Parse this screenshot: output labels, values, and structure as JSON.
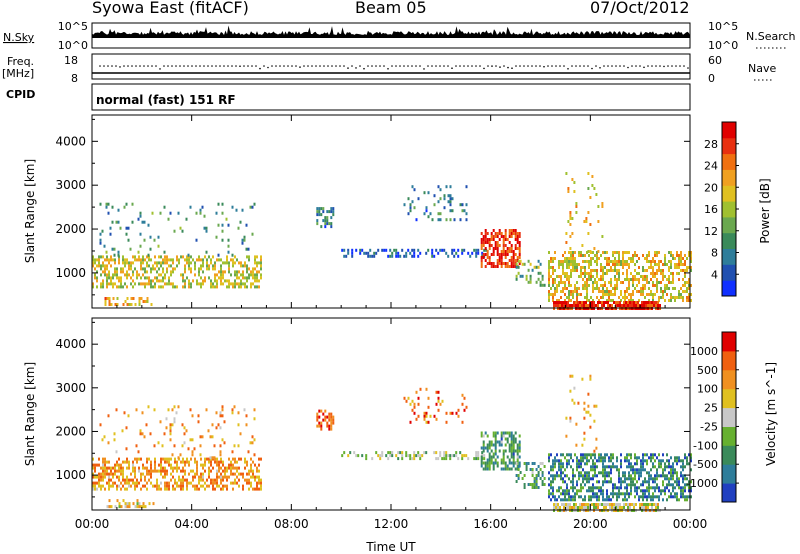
{
  "header": {
    "station": "Syowa East (fitACF)",
    "beam": "Beam 05",
    "date": "07/Oct/2012"
  },
  "top_panels": {
    "nsky_label": "N.Sky",
    "nsky_ticks": [
      "10^5",
      "10^0"
    ],
    "nsearch_label": "N.Search",
    "nsearch_ticks": [
      "10^5",
      "10^0"
    ],
    "freq_label": "Freq.",
    "freq_unit": "[MHz]",
    "freq_ticks": [
      "18",
      "8"
    ],
    "nave_label": "Nave",
    "nave_ticks": [
      "60",
      "0"
    ],
    "cpid_label": "CPID",
    "cpid_text": "normal (fast) 151 RF"
  },
  "chart_data": [
    {
      "type": "heatmap",
      "name": "power",
      "ylabel": "Slant Range [km]",
      "xlabel": "Time UT",
      "xlim": [
        0,
        24
      ],
      "ylim": [
        200,
        4600
      ],
      "x_ticks": [
        "00:00",
        "04:00",
        "08:00",
        "12:00",
        "16:00",
        "20:00",
        "00:00"
      ],
      "y_ticks": [
        "1000",
        "2000",
        "3000",
        "4000"
      ],
      "colorbar": {
        "label": "Power [dB]",
        "ticks": [
          "4",
          "8",
          "12",
          "16",
          "20",
          "24",
          "28"
        ],
        "colors": [
          "#1030ff",
          "#2050b0",
          "#2e7d9a",
          "#3a8a5a",
          "#6aa84f",
          "#a0c030",
          "#e0c020",
          "#f0a020",
          "#f07010",
          "#e83010",
          "#e00000"
        ]
      },
      "regions": [
        {
          "t": [
            0.0,
            6.8
          ],
          "r": [
            700,
            1400
          ],
          "level": 0.55,
          "density": 0.45
        },
        {
          "t": [
            0.3,
            6.5
          ],
          "r": [
            1400,
            2600
          ],
          "level": 0.3,
          "density": 0.08
        },
        {
          "t": [
            0.5,
            2.5
          ],
          "r": [
            250,
            450
          ],
          "level": 0.65,
          "density": 0.35
        },
        {
          "t": [
            9.0,
            9.7
          ],
          "r": [
            2050,
            2500
          ],
          "level": 0.25,
          "density": 0.55
        },
        {
          "t": [
            10.0,
            15.8
          ],
          "r": [
            1400,
            1550
          ],
          "level": 0.15,
          "density": 0.4
        },
        {
          "t": [
            12.5,
            15.0
          ],
          "r": [
            2200,
            3000
          ],
          "level": 0.25,
          "density": 0.12
        },
        {
          "t": [
            15.6,
            17.2
          ],
          "r": [
            1150,
            2000
          ],
          "level": 0.9,
          "density": 0.65
        },
        {
          "t": [
            17.0,
            18.2
          ],
          "r": [
            700,
            1300
          ],
          "level": 0.4,
          "density": 0.3
        },
        {
          "t": [
            18.3,
            24.0
          ],
          "r": [
            400,
            1500
          ],
          "level": 0.6,
          "density": 0.5
        },
        {
          "t": [
            18.5,
            22.8
          ],
          "r": [
            200,
            360
          ],
          "level": 0.92,
          "density": 0.9
        },
        {
          "t": [
            19.0,
            20.5
          ],
          "r": [
            1500,
            3300
          ],
          "level": 0.6,
          "density": 0.06
        }
      ]
    },
    {
      "type": "heatmap",
      "name": "velocity",
      "ylabel": "Slant Range [km]",
      "xlabel": "Time UT",
      "xlim": [
        0,
        24
      ],
      "ylim": [
        200,
        4600
      ],
      "x_ticks": [
        "00:00",
        "04:00",
        "08:00",
        "12:00",
        "16:00",
        "20:00",
        "00:00"
      ],
      "y_ticks": [
        "1000",
        "2000",
        "3000",
        "4000"
      ],
      "colorbar": {
        "label": "Velocity [m s^-1]",
        "ticks": [
          "1000",
          "500",
          "100",
          "25",
          "-25",
          "-100",
          "-500",
          "-1000"
        ],
        "colors": [
          "#2040c0",
          "#2e7d9a",
          "#3a8a5a",
          "#66b030",
          "#c8c8c8",
          "#e0c020",
          "#f09020",
          "#f06010",
          "#e00000"
        ]
      },
      "regions": [
        {
          "t": [
            0.0,
            6.8
          ],
          "r": [
            700,
            1400
          ],
          "level": 0.72,
          "density": 0.5
        },
        {
          "t": [
            0.3,
            6.5
          ],
          "r": [
            1400,
            2600
          ],
          "level": 0.7,
          "density": 0.08
        },
        {
          "t": [
            0.5,
            2.5
          ],
          "r": [
            250,
            450
          ],
          "level": 0.6,
          "density": 0.35
        },
        {
          "t": [
            9.0,
            9.7
          ],
          "r": [
            2050,
            2500
          ],
          "level": 0.85,
          "density": 0.55
        },
        {
          "t": [
            10.0,
            15.8
          ],
          "r": [
            1400,
            1550
          ],
          "level": 0.45,
          "density": 0.4
        },
        {
          "t": [
            12.5,
            15.0
          ],
          "r": [
            2200,
            3000
          ],
          "level": 0.78,
          "density": 0.12
        },
        {
          "t": [
            15.6,
            17.2
          ],
          "r": [
            1150,
            2000
          ],
          "level": 0.28,
          "density": 0.6
        },
        {
          "t": [
            17.0,
            18.2
          ],
          "r": [
            700,
            1300
          ],
          "level": 0.3,
          "density": 0.35
        },
        {
          "t": [
            18.3,
            24.0
          ],
          "r": [
            400,
            1500
          ],
          "level": 0.22,
          "density": 0.55
        },
        {
          "t": [
            18.5,
            22.8
          ],
          "r": [
            200,
            360
          ],
          "level": 0.55,
          "density": 0.8
        },
        {
          "t": [
            19.0,
            20.5
          ],
          "r": [
            1500,
            3300
          ],
          "level": 0.7,
          "density": 0.06
        }
      ]
    }
  ]
}
